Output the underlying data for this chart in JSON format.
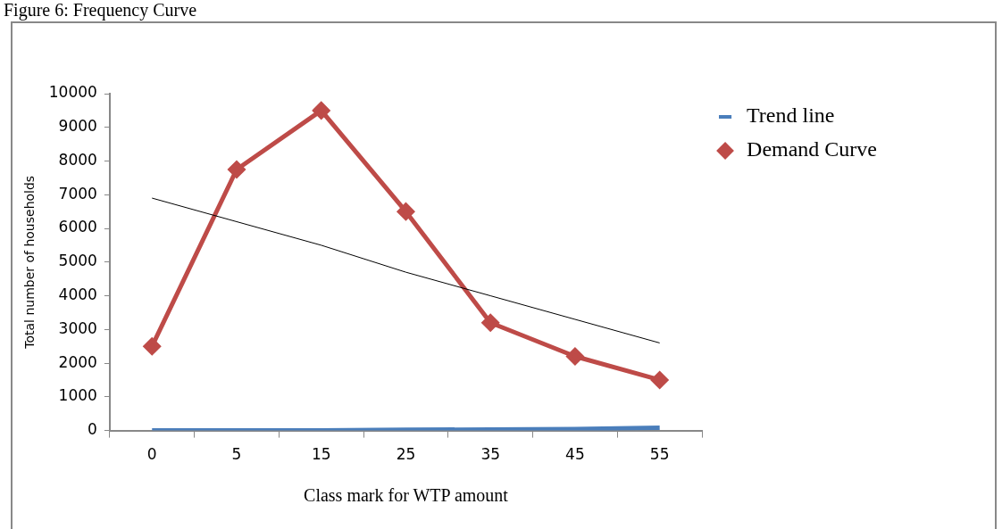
{
  "chart_data": {
    "type": "line",
    "title": "Figure 6: Frequency Curve",
    "xlabel": "Class mark for WTP amount",
    "ylabel": "Total number of households",
    "categories": [
      "0",
      "5",
      "15",
      "25",
      "35",
      "45",
      "55"
    ],
    "series": [
      {
        "name": "Trend line",
        "color": "#4a7ebb",
        "values": [
          0,
          0,
          0,
          20,
          30,
          40,
          80
        ],
        "marker": "none"
      },
      {
        "name": "Demand Curve",
        "color": "#be4b48",
        "values": [
          2500,
          7750,
          9500,
          6500,
          3200,
          2200,
          1500
        ],
        "marker": "diamond"
      },
      {
        "color": "#000000",
        "values": [
          6900,
          6200,
          5500,
          4700,
          4000,
          3300,
          2600
        ],
        "marker": "none"
      }
    ],
    "ylim": [
      0,
      10000
    ],
    "yticks": [
      0,
      1000,
      2000,
      3000,
      4000,
      5000,
      6000,
      7000,
      8000,
      9000,
      10000
    ],
    "grid": false,
    "legend": "top right",
    "line_style": "solid"
  }
}
